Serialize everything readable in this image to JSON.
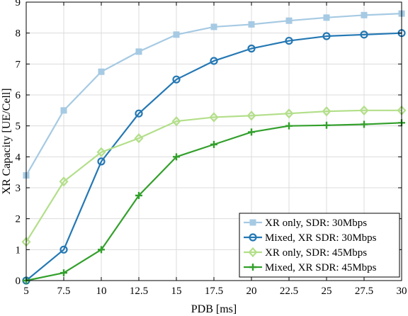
{
  "chart_data": {
    "type": "line",
    "xlabel": "PDB [ms]",
    "ylabel": "XR Capacity [UE/Cell]",
    "x": [
      5,
      7.5,
      10,
      12.5,
      15,
      17.5,
      20,
      22.5,
      25,
      27.5,
      30
    ],
    "x_tick_labels": [
      "5",
      "7.5",
      "10",
      "12.5",
      "15",
      "17.5",
      "20",
      "22.5",
      "25",
      "27.5",
      "30"
    ],
    "y_ticks": [
      0,
      1,
      2,
      3,
      4,
      5,
      6,
      7,
      8,
      9
    ],
    "y_tick_labels": [
      "0",
      "1",
      "2",
      "3",
      "4",
      "5",
      "6",
      "7",
      "8",
      "9"
    ],
    "xlim": [
      5,
      30
    ],
    "ylim": [
      0,
      9
    ],
    "grid": true,
    "legend_position": "bottom-right",
    "series": [
      {
        "name": "XR only, SDR: 30Mbps",
        "color": "#a6cae3",
        "marker": "square",
        "values": [
          3.4,
          5.5,
          6.75,
          7.4,
          7.95,
          8.2,
          8.28,
          8.4,
          8.5,
          8.58,
          8.63
        ]
      },
      {
        "name": "Mixed, XR SDR: 30Mbps",
        "color": "#2478b4",
        "marker": "circle",
        "values": [
          0,
          1.0,
          3.85,
          5.4,
          6.5,
          7.1,
          7.5,
          7.75,
          7.9,
          7.95,
          8.0
        ]
      },
      {
        "name": "XR only, SDR: 45Mbps",
        "color": "#b3df8a",
        "marker": "diamond",
        "values": [
          1.25,
          3.2,
          4.15,
          4.6,
          5.15,
          5.28,
          5.33,
          5.4,
          5.47,
          5.5,
          5.5
        ]
      },
      {
        "name": "Mixed, XR SDR: 45Mbps",
        "color": "#33a02c",
        "marker": "plus",
        "values": [
          0,
          0.25,
          1.0,
          2.75,
          4.0,
          4.4,
          4.8,
          5.0,
          5.02,
          5.05,
          5.1
        ]
      }
    ]
  }
}
